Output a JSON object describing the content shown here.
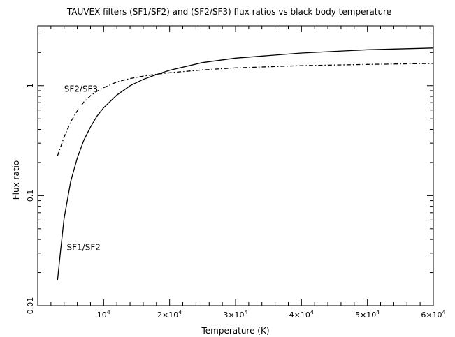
{
  "chart_data": {
    "type": "line",
    "title": "TAUVEX filters (SF1/SF2) and (SF2/SF3) flux ratios vs black body temperature",
    "xlabel": "Temperature (K)",
    "ylabel": "Flux ratio",
    "xlim": [
      0,
      60000
    ],
    "ylim": [
      0.01,
      3.5
    ],
    "y_scale": "log",
    "grid": false,
    "x_ticks": [
      {
        "value": 10000,
        "mantissa": "10",
        "sup": "4"
      },
      {
        "value": 20000,
        "mantissa": "2×10",
        "sup": "4"
      },
      {
        "value": 30000,
        "mantissa": "3×10",
        "sup": "4"
      },
      {
        "value": 40000,
        "mantissa": "4×10",
        "sup": "4"
      },
      {
        "value": 50000,
        "mantissa": "5×10",
        "sup": "4"
      },
      {
        "value": 60000,
        "mantissa": "6×10",
        "sup": "4"
      }
    ],
    "y_ticks": [
      {
        "value": 0.01,
        "label": "0.01"
      },
      {
        "value": 0.1,
        "label": "0.1"
      },
      {
        "value": 1,
        "label": "1"
      }
    ],
    "series": [
      {
        "name": "SF1/SF2",
        "style": "solid",
        "x": [
          3000,
          3500,
          4000,
          5000,
          6000,
          7000,
          8000,
          9000,
          10000,
          12000,
          14000,
          16000,
          18000,
          20000,
          25000,
          30000,
          40000,
          50000,
          60000
        ],
        "y": [
          0.017,
          0.033,
          0.062,
          0.135,
          0.22,
          0.32,
          0.42,
          0.53,
          0.63,
          0.82,
          1.0,
          1.14,
          1.26,
          1.38,
          1.62,
          1.78,
          1.98,
          2.12,
          2.2
        ]
      },
      {
        "name": "SF2/SF3",
        "style": "dashdot",
        "x": [
          3000,
          4000,
          5000,
          6000,
          7000,
          8000,
          9000,
          10000,
          12000,
          14000,
          16000,
          18000,
          20000,
          25000,
          30000,
          40000,
          50000,
          60000
        ],
        "y": [
          0.23,
          0.34,
          0.47,
          0.59,
          0.71,
          0.81,
          0.89,
          0.96,
          1.08,
          1.16,
          1.22,
          1.27,
          1.31,
          1.39,
          1.45,
          1.52,
          1.56,
          1.59
        ]
      }
    ],
    "annotations": [
      {
        "text": "SF2/SF3",
        "x": 4000,
        "y": 0.88
      },
      {
        "text": "SF1/SF2",
        "x": 4400,
        "y": 0.032
      }
    ]
  }
}
